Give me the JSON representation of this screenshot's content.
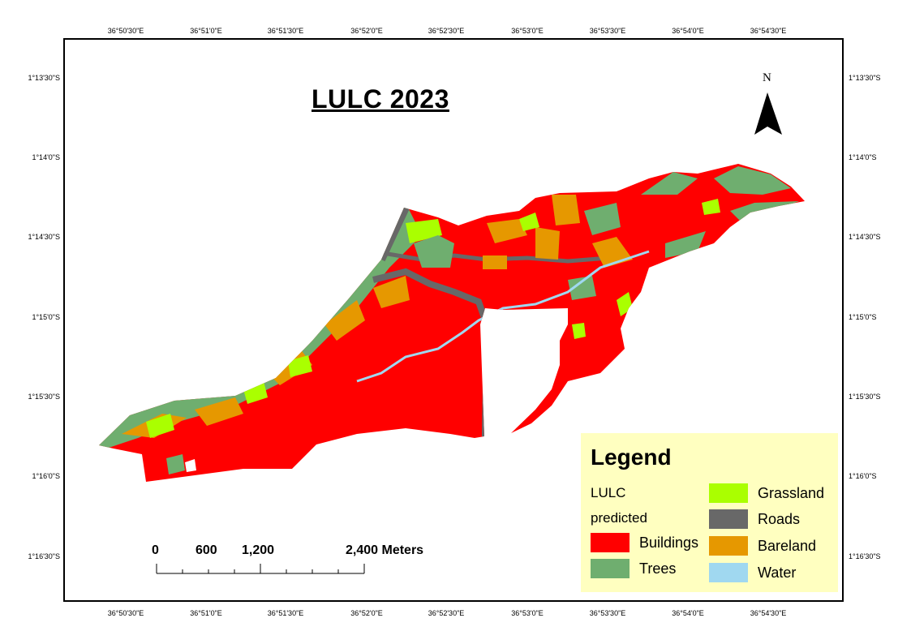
{
  "title": "LULC 2023",
  "north_label": "N",
  "graticule": {
    "top": [
      "36°50'30\"E",
      "36°51'0\"E",
      "36°51'30\"E",
      "36°52'0\"E",
      "36°52'30\"E",
      "36°53'0\"E",
      "36°53'30\"E",
      "36°54'0\"E",
      "36°54'30\"E"
    ],
    "bottom": [
      "36°50'30\"E",
      "36°51'0\"E",
      "36°51'30\"E",
      "36°52'0\"E",
      "36°52'30\"E",
      "36°53'0\"E",
      "36°53'30\"E",
      "36°54'0\"E",
      "36°54'30\"E"
    ],
    "left": [
      "1°13'30\"S",
      "1°14'0\"S",
      "1°14'30\"S",
      "1°15'0\"S",
      "1°15'30\"S",
      "1°16'0\"S",
      "1°16'30\"S"
    ],
    "right": [
      "1°13'30\"S",
      "1°14'0\"S",
      "1°14'30\"S",
      "1°15'0\"S",
      "1°15'30\"S",
      "1°16'0\"S",
      "1°16'30\"S"
    ]
  },
  "legend": {
    "title": "Legend",
    "subtitle_line1": "LULC",
    "subtitle_line2": "predicted",
    "items": [
      {
        "label": "Buildings",
        "color": "#ff0000"
      },
      {
        "label": "Trees",
        "color": "#6fae6f"
      },
      {
        "label": "Grassland",
        "color": "#aaff00"
      },
      {
        "label": "Roads",
        "color": "#686868"
      },
      {
        "label": "Bareland",
        "color": "#e69800"
      },
      {
        "label": "Water",
        "color": "#a0d8f0"
      }
    ]
  },
  "scale_bar": {
    "labels": [
      "0",
      "600",
      "1,200",
      "2,400 Meters"
    ]
  }
}
